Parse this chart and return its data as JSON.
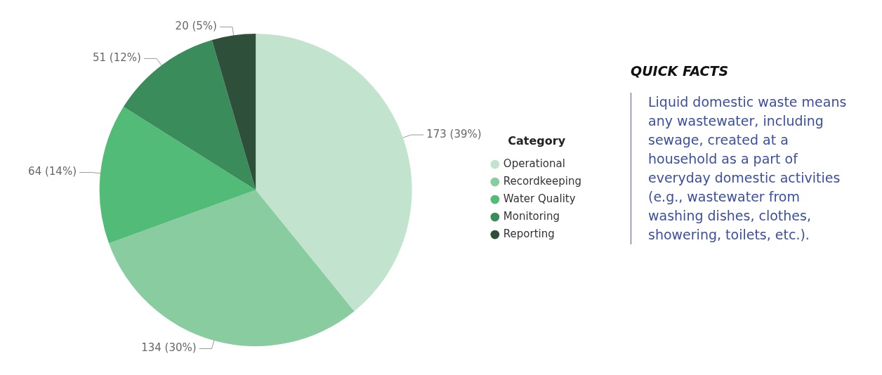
{
  "chart_data": [
    {
      "type": "pie",
      "legend_title": "Category",
      "legend": "right",
      "categories": [
        "Operational",
        "Recordkeeping",
        "Water Quality",
        "Monitoring",
        "Reporting"
      ],
      "values": [
        173,
        134,
        64,
        51,
        20
      ],
      "colors": [
        "#c2e4cf",
        "#88cca0",
        "#52bb78",
        "#3a8c5a",
        "#2e4f3a"
      ],
      "value_labels": [
        "173 (39%)",
        "134 (30%)",
        "64 (14%)",
        "51 (12%)",
        "20 (5%)"
      ]
    },
    {
      "type": "other",
      "title": "QUICK FACTS",
      "annotations": [
        "Liquid domestic waste means any wastewater, including sewage, created at a household as a part of everyday domestic activities (e.g., wastewater from washing dishes, clothes, showering, toilets, etc.)."
      ]
    }
  ]
}
